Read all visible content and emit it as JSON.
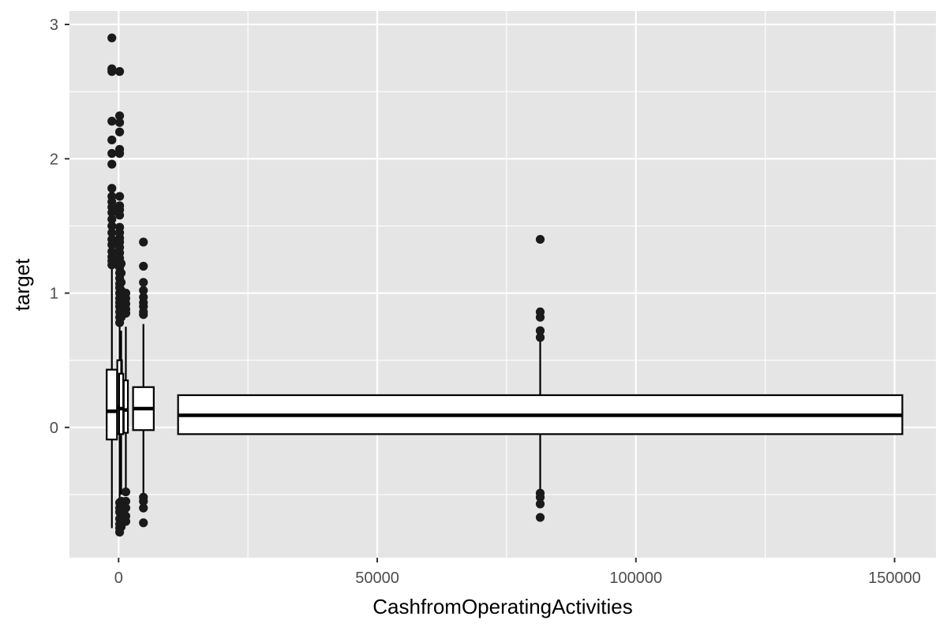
{
  "chart_data": {
    "type": "box",
    "title": "",
    "xlabel": "CashfromOperatingActivities",
    "ylabel": "target",
    "xlim": [
      -9500,
      158000
    ],
    "ylim": [
      -0.97,
      3.1
    ],
    "xticks": [
      0,
      50000,
      100000,
      150000
    ],
    "xtick_labels": [
      "0",
      "50000",
      "100000",
      "150000"
    ],
    "yticks": [
      0,
      1,
      2,
      3
    ],
    "ytick_labels": [
      "0",
      "1",
      "2",
      "3"
    ],
    "grid": true,
    "panel_background": "#e5e5e5",
    "grid_color": "#ffffff",
    "box_color": "#000000",
    "point_color": "#1a1a1a",
    "boxes": [
      {
        "x_center": -1300,
        "x_width": 2000,
        "q1": -0.09,
        "median": 0.12,
        "q3": 0.43,
        "whisker_low": -0.75,
        "whisker_high": 1.2,
        "outliers": [
          2.9,
          2.67,
          2.65,
          2.28,
          2.14,
          2.04,
          1.96,
          1.78,
          1.72,
          1.68,
          1.64,
          1.6,
          1.55,
          1.5,
          1.45,
          1.4,
          1.36,
          1.31,
          1.27,
          1.24,
          1.21
        ]
      },
      {
        "x_center": 200,
        "x_width": 900,
        "q1": -0.05,
        "median": 0.15,
        "q3": 0.5,
        "whisker_low": -0.55,
        "whisker_high": 0.75,
        "outliers": [
          2.65,
          2.32,
          2.27,
          2.2,
          2.07,
          2.04,
          1.72,
          1.65,
          1.62,
          1.58,
          1.49,
          1.45,
          1.41,
          1.38,
          1.34,
          1.3,
          1.26,
          1.22,
          1.19,
          1.15,
          1.11,
          1.07,
          1.04,
          1.0,
          0.96,
          0.93,
          0.9,
          0.86,
          0.82,
          0.78,
          -0.56,
          -0.6,
          -0.63,
          -0.68,
          -0.72,
          -0.75,
          -0.78
        ]
      },
      {
        "x_center": 500,
        "x_width": 800,
        "q1": -0.05,
        "median": 0.14,
        "q3": 0.4,
        "whisker_low": -0.5,
        "whisker_high": 0.72,
        "outliers": [
          1.22,
          1.15,
          1.08,
          1.02,
          0.98,
          0.94,
          0.9,
          0.86,
          0.82,
          -0.55,
          -0.59,
          -0.64,
          -0.68,
          -0.71,
          -0.74
        ]
      },
      {
        "x_center": 1400,
        "x_width": 800,
        "q1": -0.04,
        "median": 0.13,
        "q3": 0.35,
        "whisker_low": -0.45,
        "whisker_high": 0.75,
        "outliers": [
          1.0,
          0.96,
          0.92,
          0.88,
          0.85,
          -0.48,
          -0.55,
          -0.6,
          -0.66,
          -0.7
        ]
      },
      {
        "x_center": 4800,
        "x_width": 4000,
        "q1": -0.02,
        "median": 0.14,
        "q3": 0.3,
        "whisker_low": -0.5,
        "whisker_high": 0.77,
        "outliers": [
          1.38,
          1.2,
          1.08,
          1.02,
          0.97,
          0.93,
          0.9,
          0.86,
          0.84,
          -0.52,
          -0.55,
          -0.6,
          -0.71
        ]
      },
      {
        "x_center": 81500,
        "x_width": 140000,
        "q1": -0.05,
        "median": 0.09,
        "q3": 0.24,
        "whisker_low": -0.5,
        "whisker_high": 0.67,
        "outliers": [
          1.4,
          0.86,
          0.82,
          0.72,
          0.67,
          -0.49,
          -0.52,
          -0.57,
          -0.67
        ]
      }
    ]
  }
}
